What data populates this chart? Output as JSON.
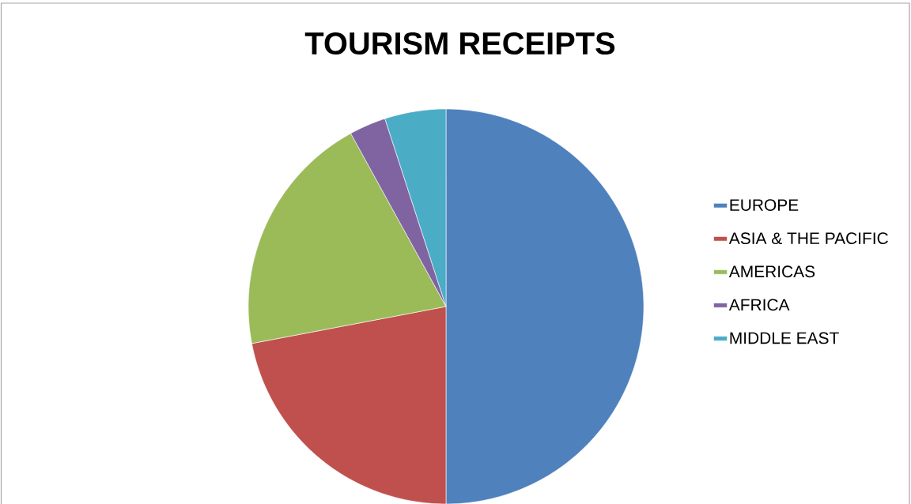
{
  "chart_data": {
    "type": "pie",
    "title": "TOURISM RECEIPTS",
    "categories": [
      "EUROPE",
      "ASIA & THE PACIFIC",
      "AMERICAS",
      "AFRICA",
      "MIDDLE EAST"
    ],
    "values": [
      50,
      22,
      20,
      3,
      5
    ],
    "colors": [
      "#4f81bd",
      "#c0504d",
      "#9bbb59",
      "#8064a2",
      "#4bacc6"
    ],
    "legend": "right"
  }
}
